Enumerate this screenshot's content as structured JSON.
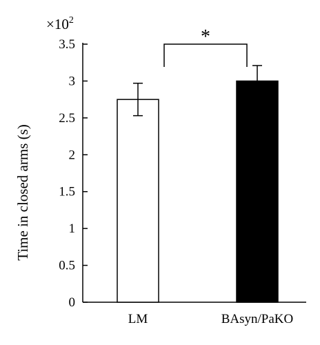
{
  "chart_data": {
    "type": "bar",
    "categories": [
      "LM",
      "BAsyn/PaKO"
    ],
    "values": [
      2.75,
      3.0
    ],
    "errors": [
      0.22,
      0.21
    ],
    "bar_fill": [
      "#ffffff",
      "#000000"
    ],
    "ylabel": "Time in closed arms (s)",
    "ylim": [
      0,
      3.5
    ],
    "yticks": [
      0,
      0.5,
      1,
      1.5,
      2,
      2.5,
      3,
      3.5
    ],
    "ytick_labels": [
      "0",
      "0.5",
      "1",
      "1.5",
      "2",
      "2.5",
      "3",
      "3.5"
    ],
    "y_multiplier": {
      "base": "×10",
      "exponent": "2"
    },
    "significance": {
      "from": 0,
      "to": 1,
      "label": "*"
    },
    "grid": false,
    "legend": "none"
  }
}
